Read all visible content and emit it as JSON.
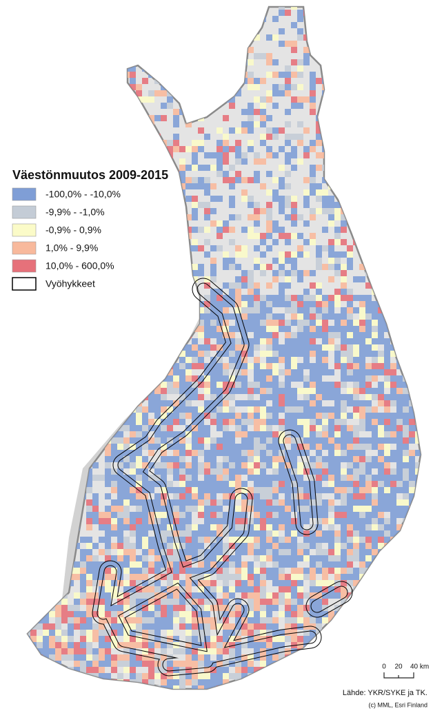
{
  "legend": {
    "title": "Väestönmuutos 2009-2015",
    "items": [
      {
        "label": "-100,0% - -10,0%",
        "color": "#7f9ed6"
      },
      {
        "label": "-9,9% - -1,0%",
        "color": "#c4ccd6"
      },
      {
        "label": "-0,9% - 0,9%",
        "color": "#fbfbc8"
      },
      {
        "label": "1,0% - 9,9%",
        "color": "#f8b99c"
      },
      {
        "label": "10,0% - 600,0%",
        "color": "#e6717a"
      },
      {
        "label": "Vyöhykkeet",
        "color": "#ffffff"
      }
    ]
  },
  "scale_bar": {
    "labels": [
      "0",
      "20",
      "40 km"
    ]
  },
  "source": "Lähde: YKR/SYKE ja TK.",
  "copyright": "(c) MML, Esri Finland"
}
